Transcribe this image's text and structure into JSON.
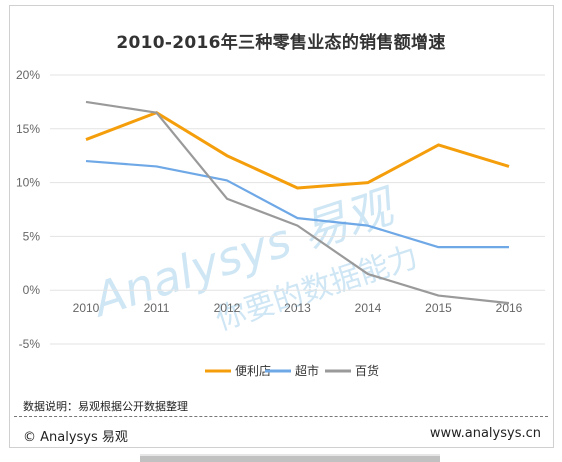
{
  "chart_data": {
    "type": "line",
    "title": "2010-2016年三种零售业态的销售额增速",
    "categories": [
      "2010",
      "2011",
      "2012",
      "2013",
      "2014",
      "2015",
      "2016"
    ],
    "y_ticks": [
      "20%",
      "15%",
      "10%",
      "5%",
      "0%",
      "-5%"
    ],
    "ylim": [
      -5,
      20
    ],
    "grid": true,
    "legend_position": "bottom",
    "series": [
      {
        "name": "便利店",
        "color": "#F59E0B",
        "values": [
          14.0,
          16.5,
          12.5,
          9.5,
          10.0,
          13.5,
          11.5
        ]
      },
      {
        "name": "超市",
        "color": "#6FA8E6",
        "values": [
          12.0,
          11.5,
          10.2,
          6.7,
          6.0,
          4.0,
          4.0
        ]
      },
      {
        "name": "百货",
        "color": "#9A9A9A",
        "values": [
          17.5,
          16.5,
          8.5,
          6.0,
          1.5,
          -0.5,
          -1.2
        ]
      }
    ]
  },
  "watermark": {
    "brand_text": "Analysys 易观",
    "slogan_text": "你要的数据能力"
  },
  "footer": {
    "note": "数据说明：易观根据公开数据整理",
    "brand": "© Analysys 易观",
    "site": "www.analysys.cn"
  }
}
